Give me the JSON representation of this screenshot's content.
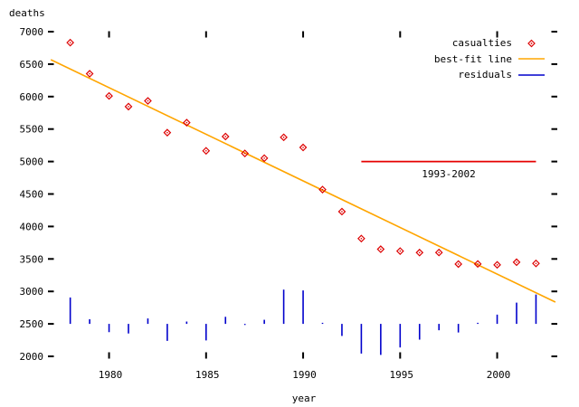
{
  "window": {
    "background": "#ffffff"
  },
  "axes": {
    "ylabel": "deaths",
    "xlabel": "year",
    "tick_color": "#000000",
    "mirrored_ticks": true,
    "border_box": false
  },
  "legend": {
    "position": "top-right",
    "entries": [
      {
        "label": "casualties",
        "marker": "diamond-point",
        "color": "#dd0000"
      },
      {
        "label": "best-fit line",
        "marker": "line",
        "color": "#ffa500"
      },
      {
        "label": "residuals",
        "marker": "line",
        "color": "#0000cc"
      }
    ]
  },
  "annotation": {
    "label": "1993-2002",
    "year_start": 1993,
    "year_end": 2002,
    "value": 5000,
    "color": "#e60000"
  },
  "chart_data": {
    "type": "scatter",
    "title": "",
    "xlabel": "year",
    "ylabel": "deaths",
    "xlim": [
      1977,
      2003
    ],
    "ylim": [
      2000,
      7000
    ],
    "xticks": [
      1980,
      1985,
      1990,
      1995,
      2000
    ],
    "yticks": [
      2000,
      2500,
      3000,
      3500,
      4000,
      4500,
      5000,
      5500,
      6000,
      6500,
      7000
    ],
    "grid": false,
    "legend_position": "top-right",
    "x": [
      1978,
      1979,
      1980,
      1981,
      1982,
      1983,
      1984,
      1985,
      1986,
      1987,
      1988,
      1989,
      1990,
      1991,
      1992,
      1993,
      1994,
      1995,
      1996,
      1997,
      1998,
      1999,
      2000,
      2001,
      2002
    ],
    "series": [
      {
        "name": "casualties",
        "type": "points",
        "marker": "open-diamond-with-dot",
        "color": "#dd0000",
        "values": [
          6831,
          6352,
          6010,
          5846,
          5934,
          5445,
          5599,
          5165,
          5385,
          5125,
          5052,
          5373,
          5217,
          4568,
          4229,
          3814,
          3650,
          3621,
          3598,
          3599,
          3421,
          3423,
          3409,
          3450,
          3431
        ]
      },
      {
        "name": "best-fit line",
        "type": "line",
        "color": "#ffa500",
        "fit": {
          "slope_per_year": -143.6,
          "value_at_1990": 4702,
          "x_start": 1977,
          "y_start": 6568,
          "x_end": 2003,
          "y_end": 2836
        }
      },
      {
        "name": "residuals",
        "type": "impulses",
        "color": "#0000cc",
        "baseline": 2500,
        "note": "residual = casualties - best-fit value, drawn as vertical bars from baseline 2500",
        "values": [
          406.5,
          71.1,
          -127.4,
          -147.8,
          83.7,
          -261.7,
          35.8,
          -254.6,
          108.9,
          -7.5,
          63.0,
          527.6,
          515.1,
          9.7,
          -185.8,
          -457.2,
          -477.7,
          -363.1,
          -242.6,
          -98.0,
          -132.5,
          13.1,
          142.6,
          327.2,
          451.7
        ]
      }
    ]
  }
}
